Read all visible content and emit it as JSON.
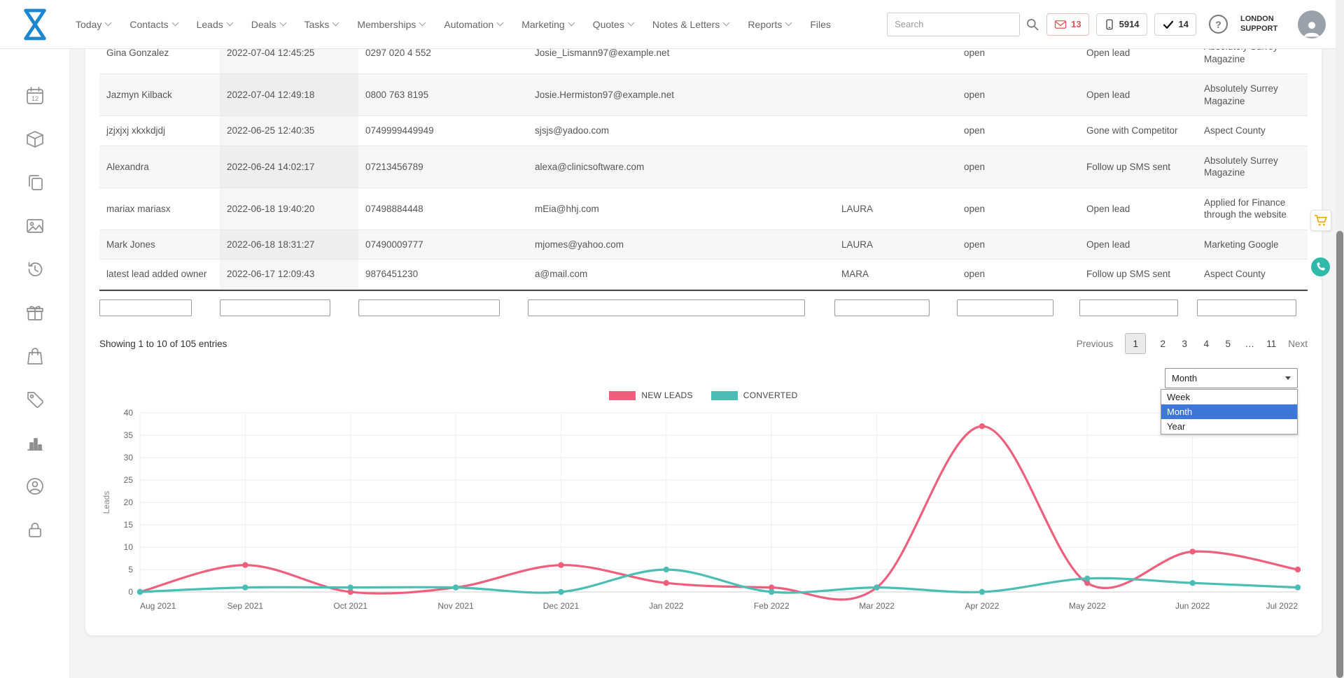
{
  "nav": {
    "search": {
      "placeholder": "Search"
    },
    "items": [
      {
        "label": "Today",
        "chevron": true
      },
      {
        "label": "Contacts",
        "chevron": true
      },
      {
        "label": "Leads",
        "chevron": true
      },
      {
        "label": "Deals",
        "chevron": true
      },
      {
        "label": "Tasks",
        "chevron": true
      },
      {
        "label": "Memberships",
        "chevron": true
      },
      {
        "label": "Automation",
        "chevron": true
      },
      {
        "label": "Marketing",
        "chevron": true
      },
      {
        "label": "Quotes",
        "chevron": true
      },
      {
        "label": "Notes & Letters",
        "chevron": true
      },
      {
        "label": "Reports",
        "chevron": true
      },
      {
        "label": "Files",
        "chevron": false
      }
    ],
    "badges": {
      "messages": "13",
      "calls": "5914",
      "tasks": "14"
    },
    "account_label": "LONDON SUPPORT"
  },
  "table": {
    "rows": [
      {
        "name": "Gina Gonzalez",
        "date": "2022-07-04 12:45:25",
        "phone": "0297 020 4 552",
        "email": "Josie_Lismann97@example.net",
        "owner": "",
        "status": "open",
        "lead_status": "Open lead",
        "source": "Absolutely Surrey Magazine"
      },
      {
        "name": "Jazmyn Kilback",
        "date": "2022-07-04 12:49:18",
        "phone": "0800 763 8195",
        "email": "Josie.Hermiston97@example.net",
        "owner": "",
        "status": "open",
        "lead_status": "Open lead",
        "source": "Absolutely Surrey Magazine"
      },
      {
        "name": "jzjxjxj xkxkdjdj",
        "date": "2022-06-25 12:40:35",
        "phone": "0749999449949",
        "email": "sjsjs@yadoo.com",
        "owner": "",
        "status": "open",
        "lead_status": "Gone with Competitor",
        "source": "Aspect County"
      },
      {
        "name": "Alexandra",
        "date": "2022-06-24 14:02:17",
        "phone": "07213456789",
        "email": "alexa@clinicsoftware.com",
        "owner": "",
        "status": "open",
        "lead_status": "Follow up SMS sent",
        "source": "Absolutely Surrey Magazine"
      },
      {
        "name": "mariax mariasx",
        "date": "2022-06-18 19:40:20",
        "phone": "07498884448",
        "email": "mEia@hhj.com",
        "owner": "LAURA",
        "status": "open",
        "lead_status": "Open lead",
        "source": "Applied for Finance through the website"
      },
      {
        "name": "Mark Jones",
        "date": "2022-06-18 18:31:27",
        "phone": "07490009777",
        "email": "mjomes@yahoo.com",
        "owner": "LAURA",
        "status": "open",
        "lead_status": "Open lead",
        "source": "Marketing Google"
      },
      {
        "name": "latest lead added owner",
        "date": "2022-06-17 12:09:43",
        "phone": "9876451230",
        "email": "a@mail.com",
        "owner": "MARA",
        "status": "open",
        "lead_status": "Follow up SMS sent",
        "source": "Aspect County"
      }
    ]
  },
  "filters": {
    "values": [
      "",
      "",
      "",
      "",
      "",
      "",
      "",
      ""
    ]
  },
  "pagination": {
    "showing": "Showing 1 to 10 of 105 entries",
    "previous": "Previous",
    "next": "Next",
    "pages": [
      "1",
      "2",
      "3",
      "4",
      "5",
      "…",
      "11"
    ],
    "active": "1"
  },
  "period_select": {
    "value": "Month",
    "options": [
      "Week",
      "Month",
      "Year"
    ]
  },
  "chart_data": {
    "type": "line",
    "x": [
      "Aug 2021",
      "Sep 2021",
      "Oct 2021",
      "Nov 2021",
      "Dec 2021",
      "Jan 2022",
      "Feb 2022",
      "Mar 2022",
      "Apr 2022",
      "May 2022",
      "Jun 2022",
      "Jul 2022"
    ],
    "series": [
      {
        "name": "NEW LEADS",
        "color": "#ee5f7d",
        "values": [
          0,
          6,
          0,
          1,
          6,
          2,
          1,
          1,
          37,
          2,
          9,
          5
        ]
      },
      {
        "name": "CONVERTED",
        "color": "#4abdb5",
        "values": [
          0,
          1,
          1,
          1,
          0,
          5,
          0,
          1,
          0,
          3,
          2,
          1
        ]
      }
    ],
    "ylabel": "Leads",
    "ylim": [
      0,
      40
    ],
    "ytick_step": 5,
    "grid": true,
    "legend_position": "top"
  },
  "colors": {
    "accent_pink": "#ee5f7d",
    "accent_teal": "#4abdb5",
    "select_highlight": "#3c77d9",
    "logo_blue": "#1d86d0"
  }
}
